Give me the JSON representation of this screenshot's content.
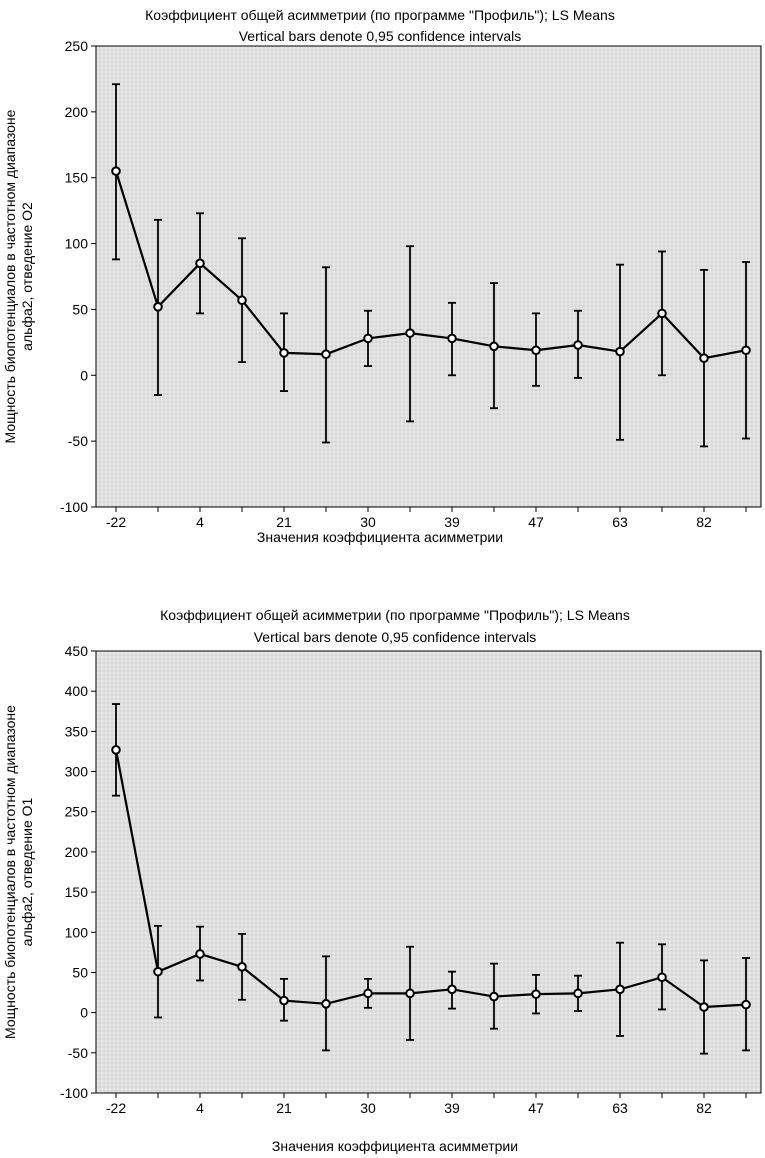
{
  "chart_data": [
    {
      "type": "line",
      "title": "Коэффициент общей асимметрии (по программе \"Профиль\"); LS Means",
      "subtitle": "Vertical bars denote 0,95 confidence intervals",
      "xlabel": "Значения коэффициента асимметрии",
      "ylabel": [
        "Мощность биопотенциалов в частотном диапазоне",
        "альфа2, отведение O2"
      ],
      "ylim": [
        -100,
        250
      ],
      "yticks": [
        -100,
        -50,
        0,
        50,
        100,
        150,
        200,
        250
      ],
      "grid": true,
      "x_tick_labels": [
        "-22",
        "",
        "4",
        "",
        "21",
        "",
        "30",
        "",
        "39",
        "",
        "47",
        "",
        "63",
        "",
        "82",
        ""
      ],
      "values": [
        155,
        52,
        85,
        57,
        17,
        16,
        28,
        32,
        28,
        22,
        19,
        23,
        18,
        47,
        13,
        19
      ],
      "ci_low": [
        88,
        -15,
        47,
        10,
        -12,
        -51,
        7,
        -35,
        0,
        -25,
        -8,
        -2,
        -49,
        0,
        -54,
        -48
      ],
      "ci_high": [
        221,
        118,
        123,
        104,
        47,
        82,
        49,
        98,
        55,
        70,
        47,
        49,
        84,
        94,
        80,
        86
      ]
    },
    {
      "type": "line",
      "title": "Коэффициент общей асимметрии (по программе \"Профиль\"); LS Means",
      "subtitle": "Vertical bars denote 0,95 confidence intervals",
      "xlabel": "Значения коэффициента асимметрии",
      "ylabel": [
        "Мощность биопотенциалов в частотном диапазоне",
        "альфа2, отведение O1"
      ],
      "ylim": [
        -100,
        450
      ],
      "yticks": [
        -100,
        -50,
        0,
        50,
        100,
        150,
        200,
        250,
        300,
        350,
        400,
        450
      ],
      "grid": true,
      "x_tick_labels": [
        "-22",
        "",
        "4",
        "",
        "21",
        "",
        "30",
        "",
        "39",
        "",
        "47",
        "",
        "63",
        "",
        "82",
        ""
      ],
      "values": [
        327,
        51,
        73,
        57,
        15,
        11,
        24,
        24,
        29,
        20,
        23,
        24,
        29,
        44,
        7,
        10
      ],
      "ci_low": [
        270,
        -6,
        40,
        16,
        -10,
        -47,
        6,
        -34,
        5,
        -20,
        -1,
        2,
        -29,
        4,
        -51,
        -47
      ],
      "ci_high": [
        384,
        108,
        107,
        98,
        42,
        70,
        42,
        82,
        51,
        61,
        47,
        46,
        87,
        85,
        65,
        68
      ]
    }
  ]
}
